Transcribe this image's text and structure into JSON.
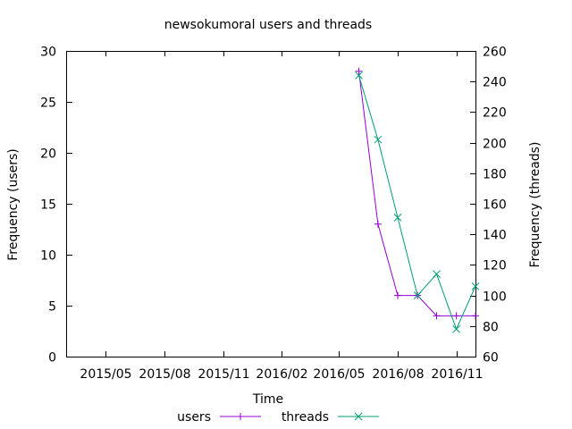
{
  "chart_data": {
    "type": "line",
    "title": "newsokumoral users and threads",
    "xlabel": "Time",
    "ylabel": "Frequency (users)",
    "y2label": "Frequency (threads)",
    "xlim": [
      "2015-03-01",
      "2016-12-01"
    ],
    "xticks": [
      {
        "date": "2015-05-01",
        "label": "2015/05"
      },
      {
        "date": "2015-08-01",
        "label": "2015/08"
      },
      {
        "date": "2015-11-01",
        "label": "2015/11"
      },
      {
        "date": "2016-02-01",
        "label": "2016/02"
      },
      {
        "date": "2016-05-01",
        "label": "2016/05"
      },
      {
        "date": "2016-08-01",
        "label": "2016/08"
      },
      {
        "date": "2016-11-01",
        "label": "2016/11"
      }
    ],
    "ylim": [
      0,
      30
    ],
    "yticks": [
      0,
      5,
      10,
      15,
      20,
      25,
      30
    ],
    "y2lim": [
      60,
      260
    ],
    "y2ticks": [
      60,
      80,
      100,
      120,
      140,
      160,
      180,
      200,
      220,
      240,
      260
    ],
    "grid": false,
    "legend_position": "bottom-center",
    "series": [
      {
        "name": "users",
        "axis": "y",
        "color": "#9400d3",
        "marker": "plus",
        "x": [
          "2016-06-01",
          "2016-07-01",
          "2016-08-01",
          "2016-09-01",
          "2016-10-01",
          "2016-11-01",
          "2016-12-01"
        ],
        "y": [
          28,
          13,
          6,
          6,
          4,
          4,
          4
        ]
      },
      {
        "name": "threads",
        "axis": "y2",
        "color": "#009e73",
        "marker": "cross",
        "x": [
          "2016-06-01",
          "2016-07-01",
          "2016-08-01",
          "2016-09-01",
          "2016-10-01",
          "2016-11-01",
          "2016-12-01"
        ],
        "y": [
          244,
          202,
          151,
          100,
          114,
          78,
          106
        ]
      }
    ]
  }
}
